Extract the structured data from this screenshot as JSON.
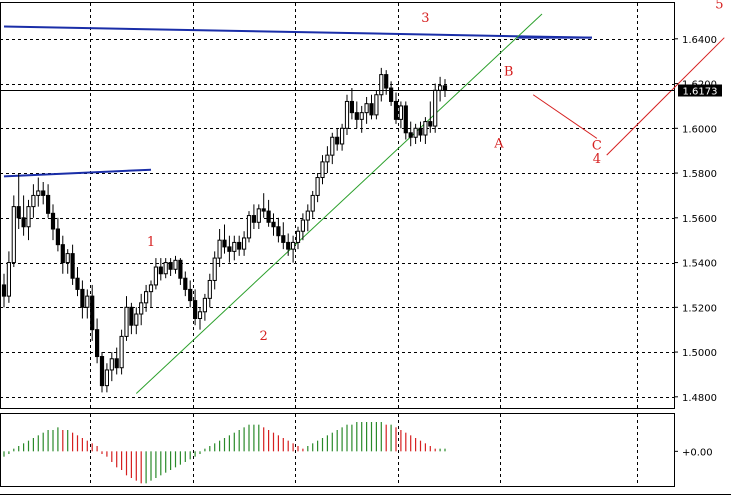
{
  "colors": {
    "background": "#ffffff",
    "grid": "#000000",
    "candle": "#000000",
    "price_line": "#000000",
    "price_label_bg": "#000000",
    "price_label_text": "#ffffff",
    "channel_line": "#1a2ea8",
    "trend_line": "#2ca02c",
    "projection_line": "#d62020",
    "wave_labels": "#d62020",
    "hist_up": "#2a8a2a",
    "hist_down": "#d62020"
  },
  "chart_data": {
    "type": "candlestick",
    "grid": true,
    "ylim": [
      1.475,
      1.656
    ],
    "current_price": "1.6173",
    "y_ticks": [
      "1.6400",
      "1.6200",
      "1.6000",
      "1.5800",
      "1.5600",
      "1.5400",
      "1.5200",
      "1.5000",
      "1.4800"
    ],
    "y_tick_values": [
      1.64,
      1.62,
      1.6,
      1.58,
      1.56,
      1.54,
      1.52,
      1.5,
      1.48
    ],
    "wave_labels": [
      {
        "text": "1",
        "x": 30,
        "price": 1.5475
      },
      {
        "text": "2",
        "x": 53,
        "price": 1.5055
      },
      {
        "text": "3",
        "x": 86,
        "price": 1.6475
      },
      {
        "text": "A",
        "x": 101,
        "price": 1.5915
      },
      {
        "text": "B",
        "x": 103,
        "price": 1.6235
      },
      {
        "text": "C",
        "x": 121,
        "price": 1.5905
      },
      {
        "text": "4",
        "x": 121,
        "price": 1.5845
      },
      {
        "text": "5",
        "x": 146,
        "price": 1.6535
      }
    ],
    "trend_line": [
      {
        "x": 27,
        "price": 1.4815
      },
      {
        "x": 128,
        "price": 1.65
      }
    ],
    "channel_lines": [
      [
        {
          "x": 0,
          "price": 1.6455
        },
        {
          "x": 120,
          "price": 1.6405
        }
      ],
      [
        {
          "x": 0,
          "price": 1.5785
        },
        {
          "x": 30,
          "price": 1.5815
        }
      ]
    ],
    "projection_lines": [
      [
        {
          "x": 108,
          "price": 1.615
        },
        {
          "x": 121,
          "price": 1.5955
        }
      ],
      [
        {
          "x": 123,
          "price": 1.588
        },
        {
          "x": 147,
          "price": 1.6405
        }
      ]
    ],
    "candles": [
      [
        1.53,
        1.535,
        1.52,
        1.525
      ],
      [
        1.525,
        1.545,
        1.522,
        1.54
      ],
      [
        1.54,
        1.57,
        1.538,
        1.565
      ],
      [
        1.565,
        1.58,
        1.555,
        1.56
      ],
      [
        1.56,
        1.57,
        1.552,
        1.556
      ],
      [
        1.556,
        1.568,
        1.55,
        1.565
      ],
      [
        1.565,
        1.575,
        1.56,
        1.57
      ],
      [
        1.57,
        1.578,
        1.565,
        1.572
      ],
      [
        1.572,
        1.576,
        1.566,
        1.57
      ],
      [
        1.57,
        1.575,
        1.56,
        1.562
      ],
      [
        1.562,
        1.566,
        1.55,
        1.555
      ],
      [
        1.555,
        1.56,
        1.545,
        1.548
      ],
      [
        1.548,
        1.552,
        1.535,
        1.54
      ],
      [
        1.54,
        1.546,
        1.535,
        1.544
      ],
      [
        1.544,
        1.548,
        1.53,
        1.533
      ],
      [
        1.533,
        1.538,
        1.525,
        1.528
      ],
      [
        1.528,
        1.532,
        1.515,
        1.52
      ],
      [
        1.52,
        1.528,
        1.515,
        1.525
      ],
      [
        1.525,
        1.53,
        1.505,
        1.51
      ],
      [
        1.51,
        1.515,
        1.495,
        1.498
      ],
      [
        1.498,
        1.5,
        1.482,
        1.485
      ],
      [
        1.485,
        1.495,
        1.482,
        1.492
      ],
      [
        1.492,
        1.5,
        1.487,
        1.497
      ],
      [
        1.497,
        1.502,
        1.49,
        1.493
      ],
      [
        1.493,
        1.51,
        1.49,
        1.507
      ],
      [
        1.507,
        1.525,
        1.505,
        1.52
      ],
      [
        1.52,
        1.522,
        1.508,
        1.512
      ],
      [
        1.512,
        1.52,
        1.508,
        1.517
      ],
      [
        1.517,
        1.526,
        1.512,
        1.522
      ],
      [
        1.522,
        1.53,
        1.518,
        1.527
      ],
      [
        1.527,
        1.532,
        1.52,
        1.53
      ],
      [
        1.53,
        1.542,
        1.528,
        1.538
      ],
      [
        1.538,
        1.542,
        1.532,
        1.535
      ],
      [
        1.535,
        1.542,
        1.533,
        1.54
      ],
      [
        1.54,
        1.542,
        1.534,
        1.537
      ],
      [
        1.537,
        1.543,
        1.535,
        1.541
      ],
      [
        1.541,
        1.542,
        1.53,
        1.533
      ],
      [
        1.533,
        1.536,
        1.525,
        1.528
      ],
      [
        1.528,
        1.532,
        1.52,
        1.523
      ],
      [
        1.523,
        1.528,
        1.512,
        1.515
      ],
      [
        1.515,
        1.52,
        1.51,
        1.518
      ],
      [
        1.518,
        1.526,
        1.514,
        1.524
      ],
      [
        1.524,
        1.535,
        1.52,
        1.532
      ],
      [
        1.532,
        1.545,
        1.528,
        1.542
      ],
      [
        1.542,
        1.555,
        1.538,
        1.55
      ],
      [
        1.55,
        1.557,
        1.544,
        1.547
      ],
      [
        1.547,
        1.552,
        1.54,
        1.545
      ],
      [
        1.545,
        1.552,
        1.541,
        1.549
      ],
      [
        1.549,
        1.552,
        1.543,
        1.546
      ],
      [
        1.546,
        1.554,
        1.543,
        1.551
      ],
      [
        1.551,
        1.563,
        1.549,
        1.561
      ],
      [
        1.561,
        1.566,
        1.555,
        1.558
      ],
      [
        1.558,
        1.566,
        1.555,
        1.564
      ],
      [
        1.564,
        1.571,
        1.56,
        1.563
      ],
      [
        1.563,
        1.568,
        1.556,
        1.558
      ],
      [
        1.558,
        1.562,
        1.552,
        1.556
      ],
      [
        1.556,
        1.56,
        1.549,
        1.552
      ],
      [
        1.552,
        1.558,
        1.546,
        1.549
      ],
      [
        1.549,
        1.553,
        1.543,
        1.546
      ],
      [
        1.546,
        1.552,
        1.54,
        1.549
      ],
      [
        1.549,
        1.556,
        1.546,
        1.554
      ],
      [
        1.554,
        1.562,
        1.55,
        1.559
      ],
      [
        1.559,
        1.566,
        1.554,
        1.563
      ],
      [
        1.563,
        1.572,
        1.56,
        1.57
      ],
      [
        1.57,
        1.58,
        1.567,
        1.578
      ],
      [
        1.578,
        1.588,
        1.575,
        1.585
      ],
      [
        1.585,
        1.592,
        1.58,
        1.588
      ],
      [
        1.588,
        1.598,
        1.584,
        1.596
      ],
      [
        1.596,
        1.6,
        1.59,
        1.593
      ],
      [
        1.593,
        1.602,
        1.59,
        1.6
      ],
      [
        1.6,
        1.615,
        1.597,
        1.612
      ],
      [
        1.612,
        1.618,
        1.604,
        1.607
      ],
      [
        1.607,
        1.612,
        1.6,
        1.604
      ],
      [
        1.604,
        1.61,
        1.598,
        1.607
      ],
      [
        1.607,
        1.614,
        1.602,
        1.611
      ],
      [
        1.611,
        1.615,
        1.604,
        1.606
      ],
      [
        1.606,
        1.617,
        1.604,
        1.615
      ],
      [
        1.615,
        1.627,
        1.612,
        1.624
      ],
      [
        1.624,
        1.626,
        1.615,
        1.618
      ],
      [
        1.618,
        1.621,
        1.61,
        1.612
      ],
      [
        1.612,
        1.616,
        1.602,
        1.604
      ],
      [
        1.604,
        1.612,
        1.6,
        1.61
      ],
      [
        1.61,
        1.612,
        1.595,
        1.598
      ],
      [
        1.598,
        1.603,
        1.592,
        1.596
      ],
      [
        1.596,
        1.602,
        1.593,
        1.6
      ],
      [
        1.6,
        1.603,
        1.594,
        1.597
      ],
      [
        1.597,
        1.605,
        1.593,
        1.603
      ],
      [
        1.603,
        1.612,
        1.598,
        1.601
      ],
      [
        1.601,
        1.62,
        1.598,
        1.617
      ],
      [
        1.617,
        1.623,
        1.612,
        1.619
      ],
      [
        1.619,
        1.622,
        1.614,
        1.617
      ]
    ],
    "histogram": [
      -2,
      -1,
      1,
      2,
      3,
      4,
      5,
      6,
      7,
      8,
      8,
      9,
      8,
      8,
      7,
      6,
      5,
      4,
      3,
      2,
      -1,
      -2,
      -4,
      -6,
      -7,
      -9,
      -10,
      -11,
      -12,
      -12,
      -11,
      -10,
      -9,
      -8,
      -7,
      -6,
      -5,
      -4,
      -3,
      -2,
      -1,
      1,
      2,
      3,
      4,
      5,
      6,
      7,
      8,
      9,
      10,
      10,
      10,
      9,
      8,
      7,
      6,
      5,
      4,
      3,
      2,
      1,
      2,
      3,
      4,
      5,
      6,
      7,
      8,
      9,
      10,
      10,
      11,
      11,
      11,
      11,
      11,
      11,
      10,
      10,
      9,
      8,
      7,
      6,
      5,
      4,
      3,
      2,
      1,
      1,
      1
    ],
    "histogram_zero_label": "+0.00",
    "histogram_range": [
      -13,
      14
    ]
  }
}
